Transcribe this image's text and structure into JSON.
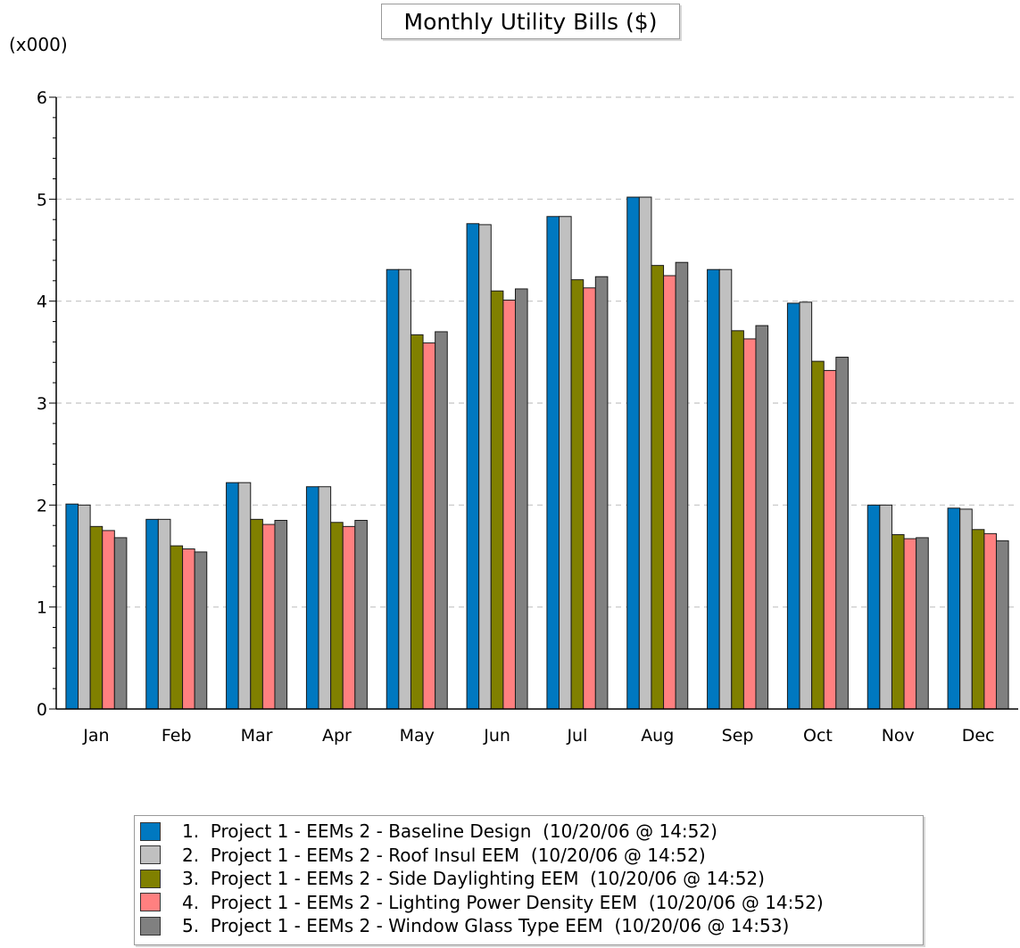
{
  "chart_data": {
    "type": "bar",
    "title": "Monthly Utility Bills ($)",
    "ylabel": "(x000)",
    "xlabel": "",
    "ylim": [
      0,
      6
    ],
    "yticks": [
      "0",
      "1",
      "2",
      "3",
      "4",
      "5",
      "6"
    ],
    "grid": "horizontal-dashed",
    "legend_position": "bottom",
    "categories": [
      "Jan",
      "Feb",
      "Mar",
      "Apr",
      "May",
      "Jun",
      "Jul",
      "Aug",
      "Sep",
      "Oct",
      "Nov",
      "Dec"
    ],
    "series": [
      {
        "name": "1.  Project 1 - EEMs 2 - Baseline Design  (10/20/06 @ 14:52)",
        "color": "#0078c0",
        "values": [
          2.01,
          1.86,
          2.22,
          2.18,
          4.31,
          4.76,
          4.83,
          5.02,
          4.31,
          3.98,
          2.0,
          1.97
        ]
      },
      {
        "name": "2.  Project 1 - EEMs 2 - Roof Insul EEM  (10/20/06 @ 14:52)",
        "color": "#c0c0c0",
        "values": [
          2.0,
          1.86,
          2.22,
          2.18,
          4.31,
          4.75,
          4.83,
          5.02,
          4.31,
          3.99,
          2.0,
          1.96
        ]
      },
      {
        "name": "3.  Project 1 - EEMs 2 - Side Daylighting EEM  (10/20/06 @ 14:52)",
        "color": "#808000",
        "values": [
          1.79,
          1.6,
          1.86,
          1.83,
          3.67,
          4.1,
          4.21,
          4.35,
          3.71,
          3.41,
          1.71,
          1.76
        ]
      },
      {
        "name": "4.  Project 1 - EEMs 2 - Lighting Power Density EEM  (10/20/06 @ 14:52)",
        "color": "#ff8080",
        "values": [
          1.75,
          1.57,
          1.81,
          1.79,
          3.59,
          4.01,
          4.13,
          4.25,
          3.63,
          3.32,
          1.67,
          1.72
        ]
      },
      {
        "name": "5.  Project 1 - EEMs 2 - Window Glass Type EEM  (10/20/06 @ 14:53)",
        "color": "#808080",
        "values": [
          1.68,
          1.54,
          1.85,
          1.85,
          3.7,
          4.12,
          4.24,
          4.38,
          3.76,
          3.45,
          1.68,
          1.65
        ]
      }
    ]
  }
}
